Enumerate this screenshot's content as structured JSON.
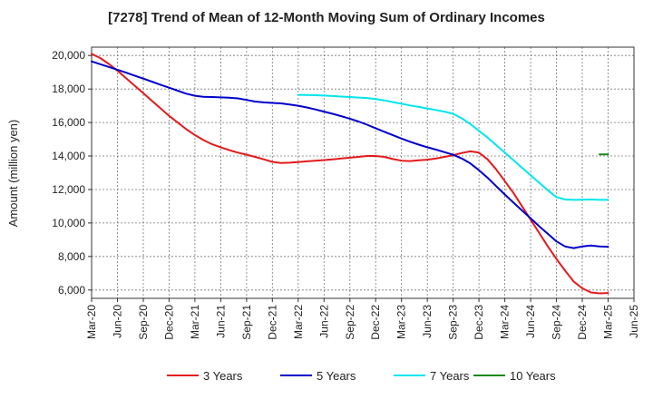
{
  "chart_data": {
    "type": "line",
    "title": "[7278]  Trend of Mean of 12-Month Moving Sum of Ordinary Incomes",
    "xlabel": "",
    "ylabel": "Amount (million yen)",
    "ylim": [
      5500,
      20500
    ],
    "yticks": [
      6000,
      8000,
      10000,
      12000,
      14000,
      16000,
      18000,
      20000
    ],
    "ytick_labels": [
      "6,000",
      "8,000",
      "10,000",
      "12,000",
      "14,000",
      "16,000",
      "18,000",
      "20,000"
    ],
    "x_month_range": [
      0,
      63
    ],
    "xticks": [
      0,
      3,
      6,
      9,
      12,
      15,
      18,
      21,
      24,
      27,
      30,
      33,
      36,
      39,
      42,
      45,
      48,
      51,
      54,
      57,
      60,
      63
    ],
    "xtick_labels": [
      "Mar-20",
      "Jun-20",
      "Sep-20",
      "Dec-20",
      "Mar-21",
      "Jun-21",
      "Sep-21",
      "Dec-21",
      "Mar-22",
      "Jun-22",
      "Sep-22",
      "Dec-22",
      "Mar-23",
      "Jun-23",
      "Sep-23",
      "Dec-23",
      "Mar-24",
      "Jun-24",
      "Sep-24",
      "Dec-24",
      "Mar-25",
      "Jun-25"
    ],
    "grid": true,
    "legend_position": "bottom",
    "series": [
      {
        "name": "3 Years",
        "color": "#e31a1c",
        "x": [
          0,
          1,
          2,
          3,
          4,
          5,
          6,
          7,
          8,
          9,
          10,
          11,
          12,
          13,
          14,
          15,
          16,
          17,
          18,
          19,
          20,
          21,
          22,
          23,
          24,
          25,
          26,
          27,
          28,
          29,
          30,
          31,
          32,
          33,
          34,
          35,
          36,
          37,
          38,
          39,
          40,
          41,
          42,
          43,
          44,
          45,
          46,
          47,
          48,
          49,
          50,
          51,
          52,
          53,
          54,
          55,
          56,
          57,
          58,
          59,
          60
        ],
        "values": [
          20100,
          19850,
          19500,
          19100,
          18650,
          18200,
          17750,
          17300,
          16850,
          16400,
          16000,
          15600,
          15250,
          14950,
          14700,
          14520,
          14350,
          14200,
          14080,
          13950,
          13800,
          13650,
          13580,
          13600,
          13640,
          13680,
          13720,
          13760,
          13800,
          13850,
          13900,
          13950,
          14000,
          14000,
          13950,
          13820,
          13720,
          13700,
          13740,
          13780,
          13850,
          13950,
          14050,
          14180,
          14280,
          14200,
          13800,
          13200,
          12500,
          11800,
          11000,
          10200,
          9400,
          8600,
          7850,
          7150,
          6500,
          6100,
          5850,
          5800,
          5820
        ]
      },
      {
        "name": "5 Years",
        "color": "#0000cc",
        "x": [
          0,
          1,
          2,
          3,
          4,
          5,
          6,
          7,
          8,
          9,
          10,
          11,
          12,
          13,
          14,
          15,
          16,
          17,
          18,
          19,
          20,
          21,
          22,
          23,
          24,
          25,
          26,
          27,
          28,
          29,
          30,
          31,
          32,
          33,
          34,
          35,
          36,
          37,
          38,
          39,
          40,
          41,
          42,
          43,
          44,
          45,
          46,
          47,
          48,
          49,
          50,
          51,
          52,
          53,
          54,
          55,
          56,
          57,
          58,
          59,
          60
        ],
        "values": [
          19650,
          19480,
          19320,
          19150,
          18980,
          18800,
          18620,
          18440,
          18260,
          18080,
          17900,
          17720,
          17600,
          17540,
          17520,
          17500,
          17480,
          17440,
          17350,
          17250,
          17200,
          17170,
          17140,
          17080,
          17000,
          16900,
          16780,
          16650,
          16520,
          16380,
          16230,
          16060,
          15870,
          15660,
          15450,
          15240,
          15040,
          14850,
          14680,
          14520,
          14380,
          14230,
          14070,
          13850,
          13550,
          13150,
          12700,
          12200,
          11700,
          11220,
          10750,
          10280,
          9800,
          9350,
          8900,
          8600,
          8500,
          8600,
          8650,
          8600,
          8580
        ]
      },
      {
        "name": "7 Years",
        "color": "#00e5ee",
        "x": [
          24,
          25,
          26,
          27,
          28,
          29,
          30,
          31,
          32,
          33,
          34,
          35,
          36,
          37,
          38,
          39,
          40,
          41,
          42,
          43,
          44,
          45,
          46,
          47,
          48,
          49,
          50,
          51,
          52,
          53,
          54,
          55,
          56,
          57,
          58,
          59,
          60
        ],
        "values": [
          17650,
          17640,
          17630,
          17610,
          17580,
          17550,
          17520,
          17490,
          17460,
          17400,
          17320,
          17220,
          17120,
          17020,
          16930,
          16840,
          16750,
          16650,
          16520,
          16250,
          15900,
          15500,
          15100,
          14650,
          14200,
          13750,
          13300,
          12850,
          12400,
          11950,
          11550,
          11400,
          11380,
          11390,
          11400,
          11380,
          11380
        ]
      },
      {
        "name": "10 Years",
        "color": "#1a8a1a",
        "x": [
          59,
          60
        ],
        "values": [
          14100,
          14100
        ]
      }
    ]
  }
}
